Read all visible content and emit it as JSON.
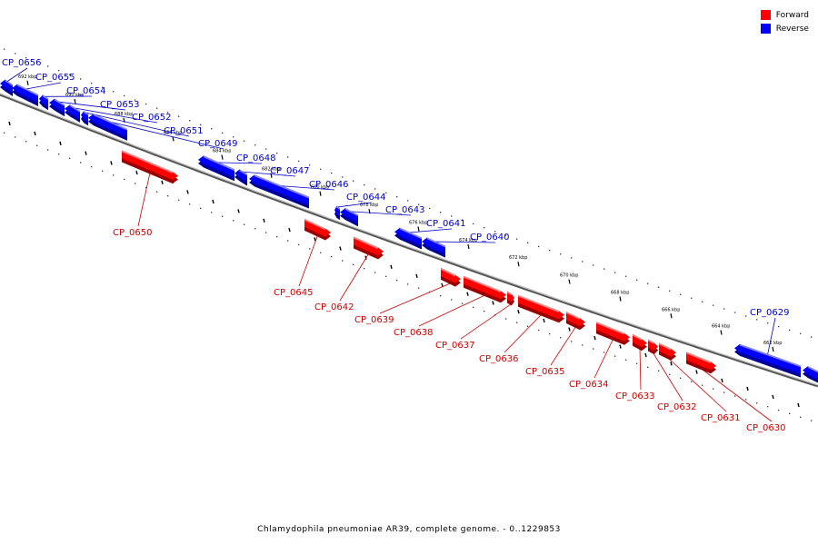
{
  "legend": {
    "forward": {
      "label": "Forward",
      "color": "#ff0000"
    },
    "reverse": {
      "label": "Reverse",
      "color": "#0000ff"
    }
  },
  "footer": "Chlamydophila pneumoniae AR39, complete genome. - 0..1229853",
  "ticks": [
    "692 kbp",
    "690 kbp",
    "688 kbp",
    "686 kbp",
    "684 kbp",
    "682 kbp",
    "680 kbp",
    "678 kbp",
    "676 kbp",
    "674 kbp",
    "672 kbp",
    "670 kbp",
    "668 kbp",
    "666 kbp",
    "664 kbp",
    "662 kbp"
  ],
  "genes": [
    {
      "id": "CP_0656",
      "strand": "reverse"
    },
    {
      "id": "CP_0655",
      "strand": "reverse"
    },
    {
      "id": "CP_0654",
      "strand": "reverse"
    },
    {
      "id": "CP_0653",
      "strand": "reverse"
    },
    {
      "id": "CP_0652",
      "strand": "reverse"
    },
    {
      "id": "CP_0651",
      "strand": "reverse"
    },
    {
      "id": "CP_0650",
      "strand": "forward"
    },
    {
      "id": "CP_0649",
      "strand": "reverse"
    },
    {
      "id": "CP_0648",
      "strand": "reverse"
    },
    {
      "id": "CP_0647",
      "strand": "reverse"
    },
    {
      "id": "CP_0646",
      "strand": "reverse"
    },
    {
      "id": "CP_0645",
      "strand": "forward"
    },
    {
      "id": "CP_0644",
      "strand": "reverse"
    },
    {
      "id": "CP_0643",
      "strand": "reverse"
    },
    {
      "id": "CP_0642",
      "strand": "forward"
    },
    {
      "id": "CP_0641",
      "strand": "reverse"
    },
    {
      "id": "CP_0640",
      "strand": "reverse"
    },
    {
      "id": "CP_0639",
      "strand": "forward"
    },
    {
      "id": "CP_0638",
      "strand": "forward"
    },
    {
      "id": "CP_0637",
      "strand": "forward"
    },
    {
      "id": "CP_0636",
      "strand": "forward"
    },
    {
      "id": "CP_0635",
      "strand": "forward"
    },
    {
      "id": "CP_0634",
      "strand": "forward"
    },
    {
      "id": "CP_0633",
      "strand": "forward"
    },
    {
      "id": "CP_0632",
      "strand": "forward"
    },
    {
      "id": "CP_0631",
      "strand": "forward"
    },
    {
      "id": "CP_0630",
      "strand": "forward"
    },
    {
      "id": "CP_0629",
      "strand": "reverse"
    }
  ]
}
